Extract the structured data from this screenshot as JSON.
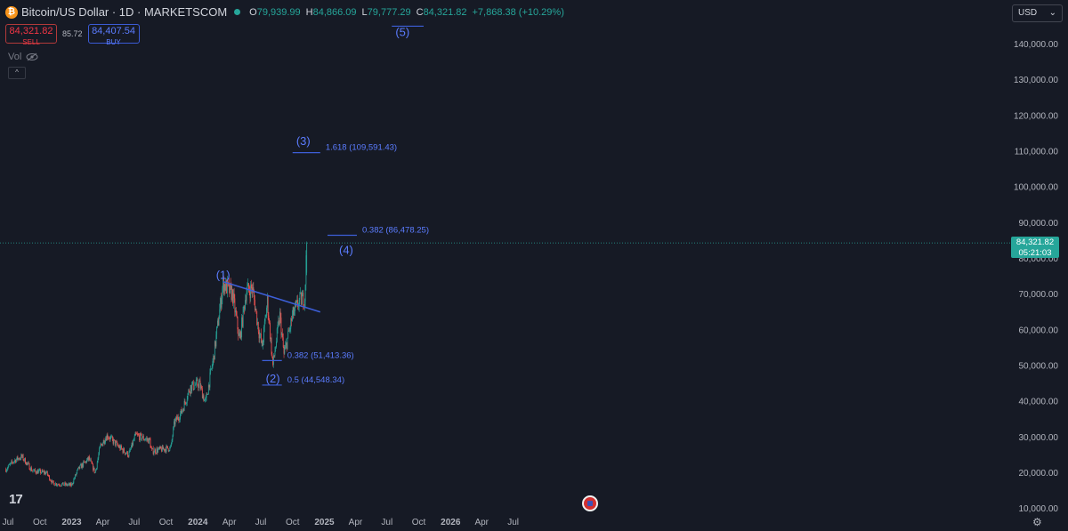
{
  "header": {
    "symbol_title": "Bitcoin/US Dollar · 1D · MARKETSCOM",
    "coin_icon": "bitcoin-icon",
    "open_label": "O",
    "open": "79,939.99",
    "high_label": "H",
    "high": "84,866.09",
    "low_label": "L",
    "low": "79,777.29",
    "close_label": "C",
    "close": "84,321.82",
    "change": "+7,868.38 (+10.29%)"
  },
  "trade": {
    "sell_price": "84,321.82",
    "sell_label": "SELL",
    "spread": "85.72",
    "buy_price": "84,407.54",
    "buy_label": "BUY"
  },
  "indicators": {
    "vol_label": "Vol",
    "vol_icon": "eye-icon",
    "collapse_icon": "chevron-up-icon"
  },
  "currency": {
    "value": "USD",
    "icon": "chevron-down-icon"
  },
  "last_price": {
    "price": "84,321.82",
    "countdown": "05:21:03",
    "color": "#26a69a"
  },
  "colors": {
    "background": "#161a25",
    "up": "#26a69a",
    "down": "#ef5350",
    "drawing": "#3d5fd9",
    "grid_text": "#b2b5be"
  },
  "chart_data": {
    "type": "candlestick",
    "yaxis_ticks": [
      "140,000.00",
      "130,000.00",
      "120,000.00",
      "110,000.00",
      "100,000.00",
      "90,000.00",
      "80,000.00",
      "70,000.00",
      "60,000.00",
      "50,000.00",
      "40,000.00",
      "30,000.00",
      "20,000.00",
      "10,000.00"
    ],
    "ylim": [
      10000,
      145000
    ],
    "xaxis_ticks": [
      "Jul",
      "Oct",
      "2023",
      "Apr",
      "Jul",
      "Oct",
      "2024",
      "Apr",
      "Jul",
      "Oct",
      "2025",
      "Apr",
      "Jul",
      "Oct",
      "2026",
      "Apr",
      "Jul"
    ],
    "price_path": [
      [
        "2022-06-25",
        21000
      ],
      [
        "2022-07-20",
        23500
      ],
      [
        "2022-08-10",
        24500
      ],
      [
        "2022-09-10",
        20500
      ],
      [
        "2022-10-20",
        20000
      ],
      [
        "2022-11-08",
        17000
      ],
      [
        "2022-12-31",
        16500
      ],
      [
        "2023-01-20",
        21000
      ],
      [
        "2023-02-20",
        24000
      ],
      [
        "2023-03-10",
        20000
      ],
      [
        "2023-03-25",
        27500
      ],
      [
        "2023-04-14",
        30500
      ],
      [
        "2023-05-20",
        27000
      ],
      [
        "2023-06-15",
        25000
      ],
      [
        "2023-07-05",
        30500
      ],
      [
        "2023-08-15",
        29000
      ],
      [
        "2023-08-20",
        26000
      ],
      [
        "2023-09-15",
        26500
      ],
      [
        "2023-10-15",
        27000
      ],
      [
        "2023-10-25",
        34000
      ],
      [
        "2023-11-15",
        37000
      ],
      [
        "2023-12-10",
        44000
      ],
      [
        "2024-01-05",
        45000
      ],
      [
        "2024-01-23",
        39500
      ],
      [
        "2024-02-15",
        52000
      ],
      [
        "2024-03-14",
        73000
      ],
      [
        "2024-04-10",
        70000
      ],
      [
        "2024-05-01",
        57000
      ],
      [
        "2024-05-20",
        71000
      ],
      [
        "2024-06-07",
        71500
      ],
      [
        "2024-06-25",
        60000
      ],
      [
        "2024-07-05",
        55000
      ],
      [
        "2024-07-20",
        68000
      ],
      [
        "2024-08-05",
        50000
      ],
      [
        "2024-08-25",
        64000
      ],
      [
        "2024-09-06",
        53000
      ],
      [
        "2024-10-01",
        64000
      ],
      [
        "2024-10-20",
        68000
      ],
      [
        "2024-11-05",
        69000
      ],
      [
        "2024-11-11",
        84321.82
      ]
    ],
    "trendline": [
      [
        "2024-03-14",
        73500
      ],
      [
        "2024-12-20",
        65000
      ]
    ],
    "wave_labels": [
      {
        "label": "(1)",
        "x": "2024-03-14",
        "y": 75500
      },
      {
        "label": "(2)",
        "x": "2024-08-05",
        "y": 46500
      },
      {
        "label": "(3)",
        "x": "2024-11-01",
        "y": 113000
      },
      {
        "label": "(4)",
        "x": "2025-03-05",
        "y": 82500
      },
      {
        "label": "(5)",
        "x": "2025-08-15",
        "y": 143500
      }
    ],
    "fib_levels": [
      {
        "label": "1.618 (109,591.43)",
        "value": 109591.43,
        "x_start": "2024-10-01",
        "x_end": "2024-12-20"
      },
      {
        "label": "0.382 (86,478.25)",
        "value": 86478.25,
        "x_start": "2025-01-10",
        "x_end": "2025-04-05"
      },
      {
        "label": "0.382 (51,413.36)",
        "value": 51413.36,
        "x_start": "2024-07-05",
        "x_end": "2024-08-31"
      },
      {
        "label": "0.5 (44,548.34)",
        "value": 44548.34,
        "x_start": "2024-07-05",
        "x_end": "2024-08-31"
      },
      {
        "label": "",
        "value": 145000,
        "x_start": "2025-07-15",
        "x_end": "2025-10-15"
      }
    ]
  }
}
